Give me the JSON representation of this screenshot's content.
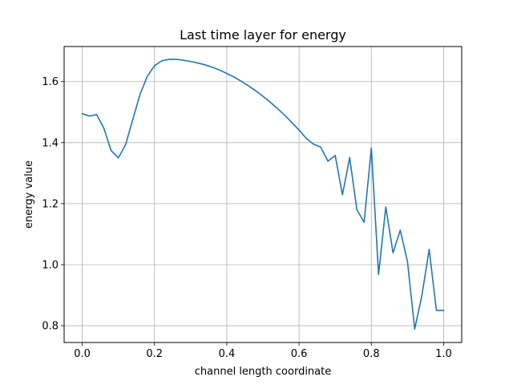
{
  "chart_data": {
    "type": "line",
    "title": "Last time layer for energy",
    "xlabel": "channel length coordinate",
    "ylabel": "energy value",
    "xlim": [
      -0.05,
      1.05
    ],
    "ylim": [
      0.745,
      1.715
    ],
    "xticks": [
      0.0,
      0.2,
      0.4,
      0.6,
      0.8,
      1.0
    ],
    "xtick_labels": [
      "0.0",
      "0.2",
      "0.4",
      "0.6",
      "0.8",
      "1.0"
    ],
    "yticks": [
      0.8,
      1.0,
      1.2,
      1.4,
      1.6
    ],
    "ytick_labels": [
      "0.8",
      "1.0",
      "1.2",
      "1.4",
      "1.6"
    ],
    "grid": true,
    "series": [
      {
        "color": "#1f77b4",
        "x": [
          0.0,
          0.02,
          0.04,
          0.06,
          0.08,
          0.1,
          0.12,
          0.14,
          0.16,
          0.18,
          0.2,
          0.22,
          0.24,
          0.26,
          0.28,
          0.3,
          0.32,
          0.34,
          0.36,
          0.38,
          0.4,
          0.42,
          0.44,
          0.46,
          0.48,
          0.5,
          0.52,
          0.54,
          0.56,
          0.58,
          0.6,
          0.62,
          0.64,
          0.66,
          0.68,
          0.7,
          0.72,
          0.74,
          0.76,
          0.78,
          0.8,
          0.82,
          0.84,
          0.86,
          0.88,
          0.9,
          0.92,
          0.94,
          0.96,
          0.98,
          1.0
        ],
        "y": [
          1.495,
          1.487,
          1.492,
          1.447,
          1.374,
          1.35,
          1.393,
          1.476,
          1.558,
          1.617,
          1.652,
          1.668,
          1.673,
          1.673,
          1.67,
          1.666,
          1.661,
          1.655,
          1.647,
          1.638,
          1.627,
          1.615,
          1.601,
          1.586,
          1.57,
          1.552,
          1.533,
          1.512,
          1.49,
          1.466,
          1.441,
          1.414,
          1.395,
          1.385,
          1.339,
          1.358,
          1.229,
          1.351,
          1.18,
          1.139,
          1.382,
          0.968,
          1.189,
          1.039,
          1.113,
          1.01,
          0.789,
          0.9,
          1.05,
          0.85,
          0.85
        ]
      }
    ]
  }
}
